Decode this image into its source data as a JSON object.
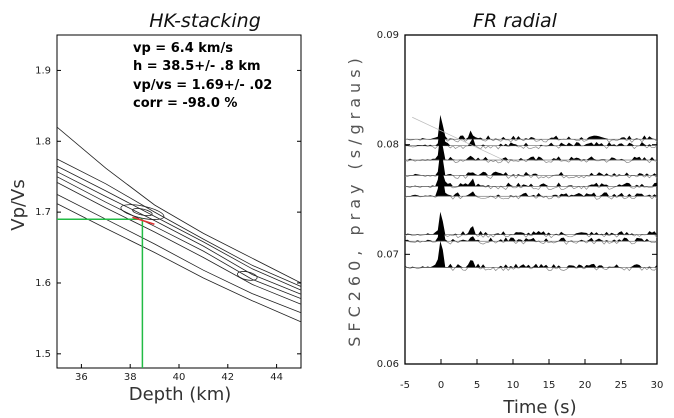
{
  "chart_data": [
    {
      "type": "contour",
      "title": "HK-stacking",
      "xlabel": "Depth (km)",
      "ylabel": "Vp/Vs",
      "xlim": [
        35,
        45
      ],
      "ylim": [
        1.48,
        1.95
      ],
      "x_ticks": [
        "36",
        "38",
        "40",
        "42",
        "44"
      ],
      "y_ticks": [
        "1.5",
        "1.6",
        "1.7",
        "1.8",
        "1.9"
      ],
      "annotations": [
        "vp = 6.4 km/s",
        "h = 38.5+/- .8 km",
        "vp/vs = 1.69+/- .02",
        "corr = -98.0 %"
      ],
      "best_fit": {
        "depth_km": 38.5,
        "vp_vs": 1.69
      },
      "contours": [
        [
          [
            35,
            1.82
          ],
          [
            37,
            1.762
          ],
          [
            39,
            1.71
          ],
          [
            41,
            1.67
          ],
          [
            43,
            1.635
          ],
          [
            45,
            1.6
          ]
        ],
        [
          [
            35,
            1.775
          ],
          [
            37,
            1.74
          ],
          [
            39,
            1.7
          ],
          [
            41,
            1.662
          ],
          [
            43,
            1.625
          ],
          [
            45,
            1.595
          ]
        ],
        [
          [
            35,
            1.765
          ],
          [
            37,
            1.73
          ],
          [
            39,
            1.694
          ],
          [
            41,
            1.658
          ],
          [
            43,
            1.62
          ],
          [
            45,
            1.59
          ]
        ],
        [
          [
            35,
            1.757
          ],
          [
            37,
            1.722
          ],
          [
            39,
            1.688
          ],
          [
            41,
            1.652
          ],
          [
            43,
            1.612
          ],
          [
            45,
            1.584
          ]
        ],
        [
          [
            35,
            1.75
          ],
          [
            37,
            1.714
          ],
          [
            39,
            1.68
          ],
          [
            41,
            1.645
          ],
          [
            43,
            1.605
          ],
          [
            45,
            1.578
          ]
        ],
        [
          [
            35,
            1.742
          ],
          [
            37,
            1.706
          ],
          [
            39,
            1.672
          ],
          [
            41,
            1.636
          ],
          [
            43,
            1.598
          ],
          [
            45,
            1.57
          ]
        ],
        [
          [
            35,
            1.725
          ],
          [
            37,
            1.69
          ],
          [
            39,
            1.655
          ],
          [
            41,
            1.618
          ],
          [
            43,
            1.585
          ],
          [
            45,
            1.558
          ]
        ],
        [
          [
            35,
            1.712
          ],
          [
            37,
            1.677
          ],
          [
            39,
            1.643
          ],
          [
            41,
            1.607
          ],
          [
            43,
            1.575
          ],
          [
            45,
            1.545
          ]
        ]
      ],
      "guide_line_color": "#22bb44",
      "marker_color": "#dd3333"
    },
    {
      "type": "line",
      "title": "FR radial",
      "xlabel": "Time (s)",
      "ylabel": "SFC260, pray (s/graus)",
      "xlim": [
        -5,
        30
      ],
      "ylim": [
        0.06,
        0.09
      ],
      "x_ticks": [
        "-5",
        "0",
        "5",
        "10",
        "15",
        "20",
        "25",
        "30"
      ],
      "y_ticks": [
        "0.06",
        "0.07",
        "0.08",
        "0.09"
      ],
      "trace_ray_params": [
        0.0805,
        0.0799,
        0.0786,
        0.0772,
        0.0762,
        0.0753,
        0.0718,
        0.0712,
        0.0688
      ],
      "main_pulse_time_s": 0,
      "secondary_pulse_time_s": 4.3,
      "trace_fill_color": "#000000"
    }
  ]
}
